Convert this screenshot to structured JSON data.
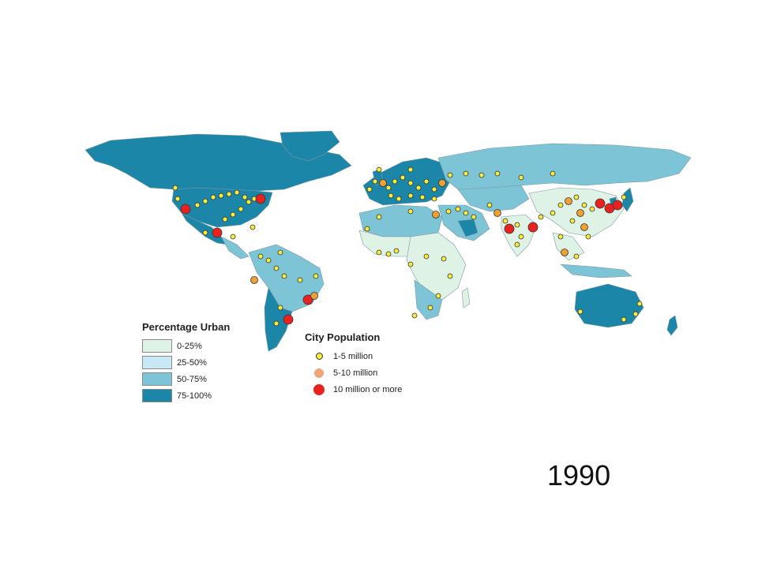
{
  "map": {
    "colors": {
      "ocean": "#ffffff",
      "c0_25": "#dff2e6",
      "c25_50": "#c9e8f5",
      "c50_75": "#7cc4d6",
      "c75_100": "#1b86a8",
      "border": "#7d99a6"
    },
    "urban_legend": {
      "title": "Percentage Urban",
      "items": [
        {
          "label": "0-25%",
          "color": "#dff2e6"
        },
        {
          "label": "25-50%",
          "color": "#c9e8f5"
        },
        {
          "label": "50-75%",
          "color": "#7cc4d6"
        },
        {
          "label": "75-100%",
          "color": "#1b86a8"
        }
      ]
    },
    "population_legend": {
      "title": "City Population",
      "items": [
        {
          "label": "1-5 million",
          "color": "#f7ec3b"
        },
        {
          "label": "5-10 million",
          "color": "#f0a57c"
        },
        {
          "label": "10 million or more",
          "color": "#e8231f"
        }
      ]
    },
    "year": "1990"
  }
}
